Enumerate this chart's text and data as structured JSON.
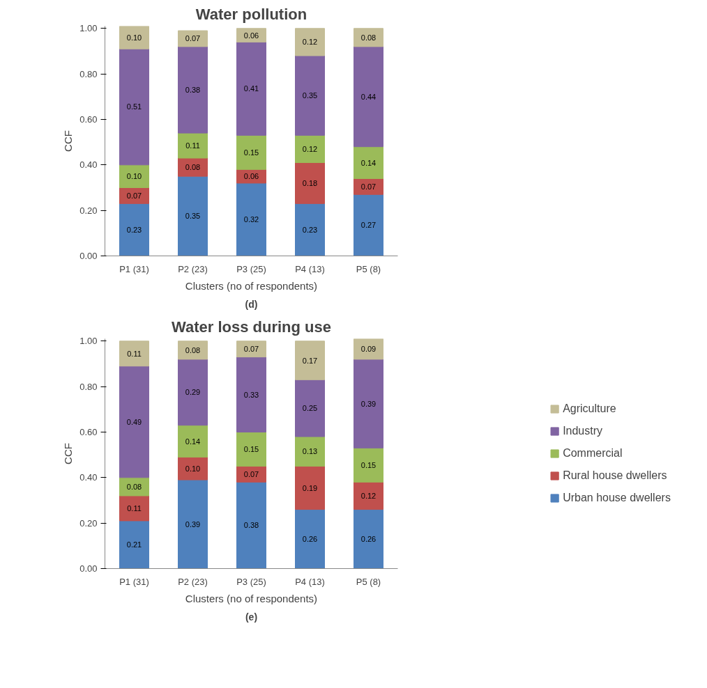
{
  "chart_data": [
    {
      "type": "bar",
      "stacked": true,
      "title": "Water pollution",
      "xlabel": "Clusters (no of respondents)",
      "ylabel": "CCF",
      "annotations": [
        "(d)"
      ],
      "categories": [
        "P1 (31)",
        "P2 (23)",
        "P3 (25)",
        "P4 (13)",
        "P5 (8)"
      ],
      "series": [
        {
          "color": "#4f81bd",
          "values": [
            0.23,
            0.35,
            0.32,
            0.23,
            0.27
          ],
          "value_labels": [
            "0.23",
            "0.35",
            "0.32",
            "0.23",
            "0.27"
          ]
        },
        {
          "color": "#c0504d",
          "values": [
            0.07,
            0.08,
            0.06,
            0.18,
            0.07
          ],
          "value_labels": [
            "0.07",
            "0.08",
            "0.06",
            "0.18",
            "0.07"
          ]
        },
        {
          "color": "#9bbb59",
          "values": [
            0.1,
            0.11,
            0.15,
            0.12,
            0.14
          ],
          "value_labels": [
            "0.10",
            "0.11",
            "0.15",
            "0.12",
            "0.14"
          ]
        },
        {
          "color": "#8064a2",
          "values": [
            0.51,
            0.38,
            0.41,
            0.35,
            0.44
          ],
          "value_labels": [
            "0.51",
            "0.38",
            "0.41",
            "0.35",
            "0.44"
          ]
        },
        {
          "color": "#c4bd97",
          "values": [
            0.1,
            0.07,
            0.06,
            0.12,
            0.08
          ],
          "value_labels": [
            "0.10",
            "0.07",
            "0.06",
            "0.12",
            "0.08"
          ]
        }
      ],
      "ylim": [
        0,
        1.01
      ],
      "yticks": [
        {
          "value": 0,
          "label": "0.00"
        },
        {
          "value": 0.2,
          "label": "0.20"
        },
        {
          "value": 0.4,
          "label": "0.40"
        },
        {
          "value": 0.6,
          "label": "0.60"
        },
        {
          "value": 0.8,
          "label": "0.80"
        },
        {
          "value": 1,
          "label": "1.00"
        }
      ],
      "grid": false,
      "legend": false
    },
    {
      "type": "bar",
      "stacked": true,
      "title": "Water loss during use",
      "xlabel": "Clusters (no of respondents)",
      "ylabel": "CCF",
      "annotations": [
        "(e)"
      ],
      "categories": [
        "P1 (31)",
        "P2 (23)",
        "P3 (25)",
        "P4 (13)",
        "P5 (8)"
      ],
      "series": [
        {
          "name": "Urban house dwellers",
          "color": "#4f81bd",
          "values": [
            0.21,
            0.39,
            0.38,
            0.26,
            0.26
          ],
          "value_labels": [
            "0.21",
            "0.39",
            "0.38",
            "0.26",
            "0.26"
          ]
        },
        {
          "name": "Rural house dwellers",
          "color": "#c0504d",
          "values": [
            0.11,
            0.1,
            0.07,
            0.19,
            0.12
          ],
          "value_labels": [
            "0.11",
            "0.10",
            "0.07",
            "0.19",
            "0.12"
          ]
        },
        {
          "name": "Commercial",
          "color": "#9bbb59",
          "values": [
            0.08,
            0.14,
            0.15,
            0.13,
            0.15
          ],
          "value_labels": [
            "0.08",
            "0.14",
            "0.15",
            "0.13",
            "0.15"
          ]
        },
        {
          "name": "Industry",
          "color": "#8064a2",
          "values": [
            0.49,
            0.29,
            0.33,
            0.25,
            0.39
          ],
          "value_labels": [
            "0.49",
            "0.29",
            "0.33",
            "0.25",
            "0.39"
          ]
        },
        {
          "name": "Agriculture",
          "color": "#c4bd97",
          "values": [
            0.11,
            0.08,
            0.07,
            0.17,
            0.09
          ],
          "value_labels": [
            "0.11",
            "0.08",
            "0.07",
            "0.17",
            "0.09"
          ]
        }
      ],
      "ylim": [
        0,
        1.01
      ],
      "yticks": [
        {
          "value": 0,
          "label": "0.00"
        },
        {
          "value": 0.2,
          "label": "0.20"
        },
        {
          "value": 0.4,
          "label": "0.40"
        },
        {
          "value": 0.6,
          "label": "0.60"
        },
        {
          "value": 0.8,
          "label": "0.80"
        },
        {
          "value": 1,
          "label": "1.00"
        }
      ],
      "grid": false,
      "legend": "right"
    }
  ]
}
